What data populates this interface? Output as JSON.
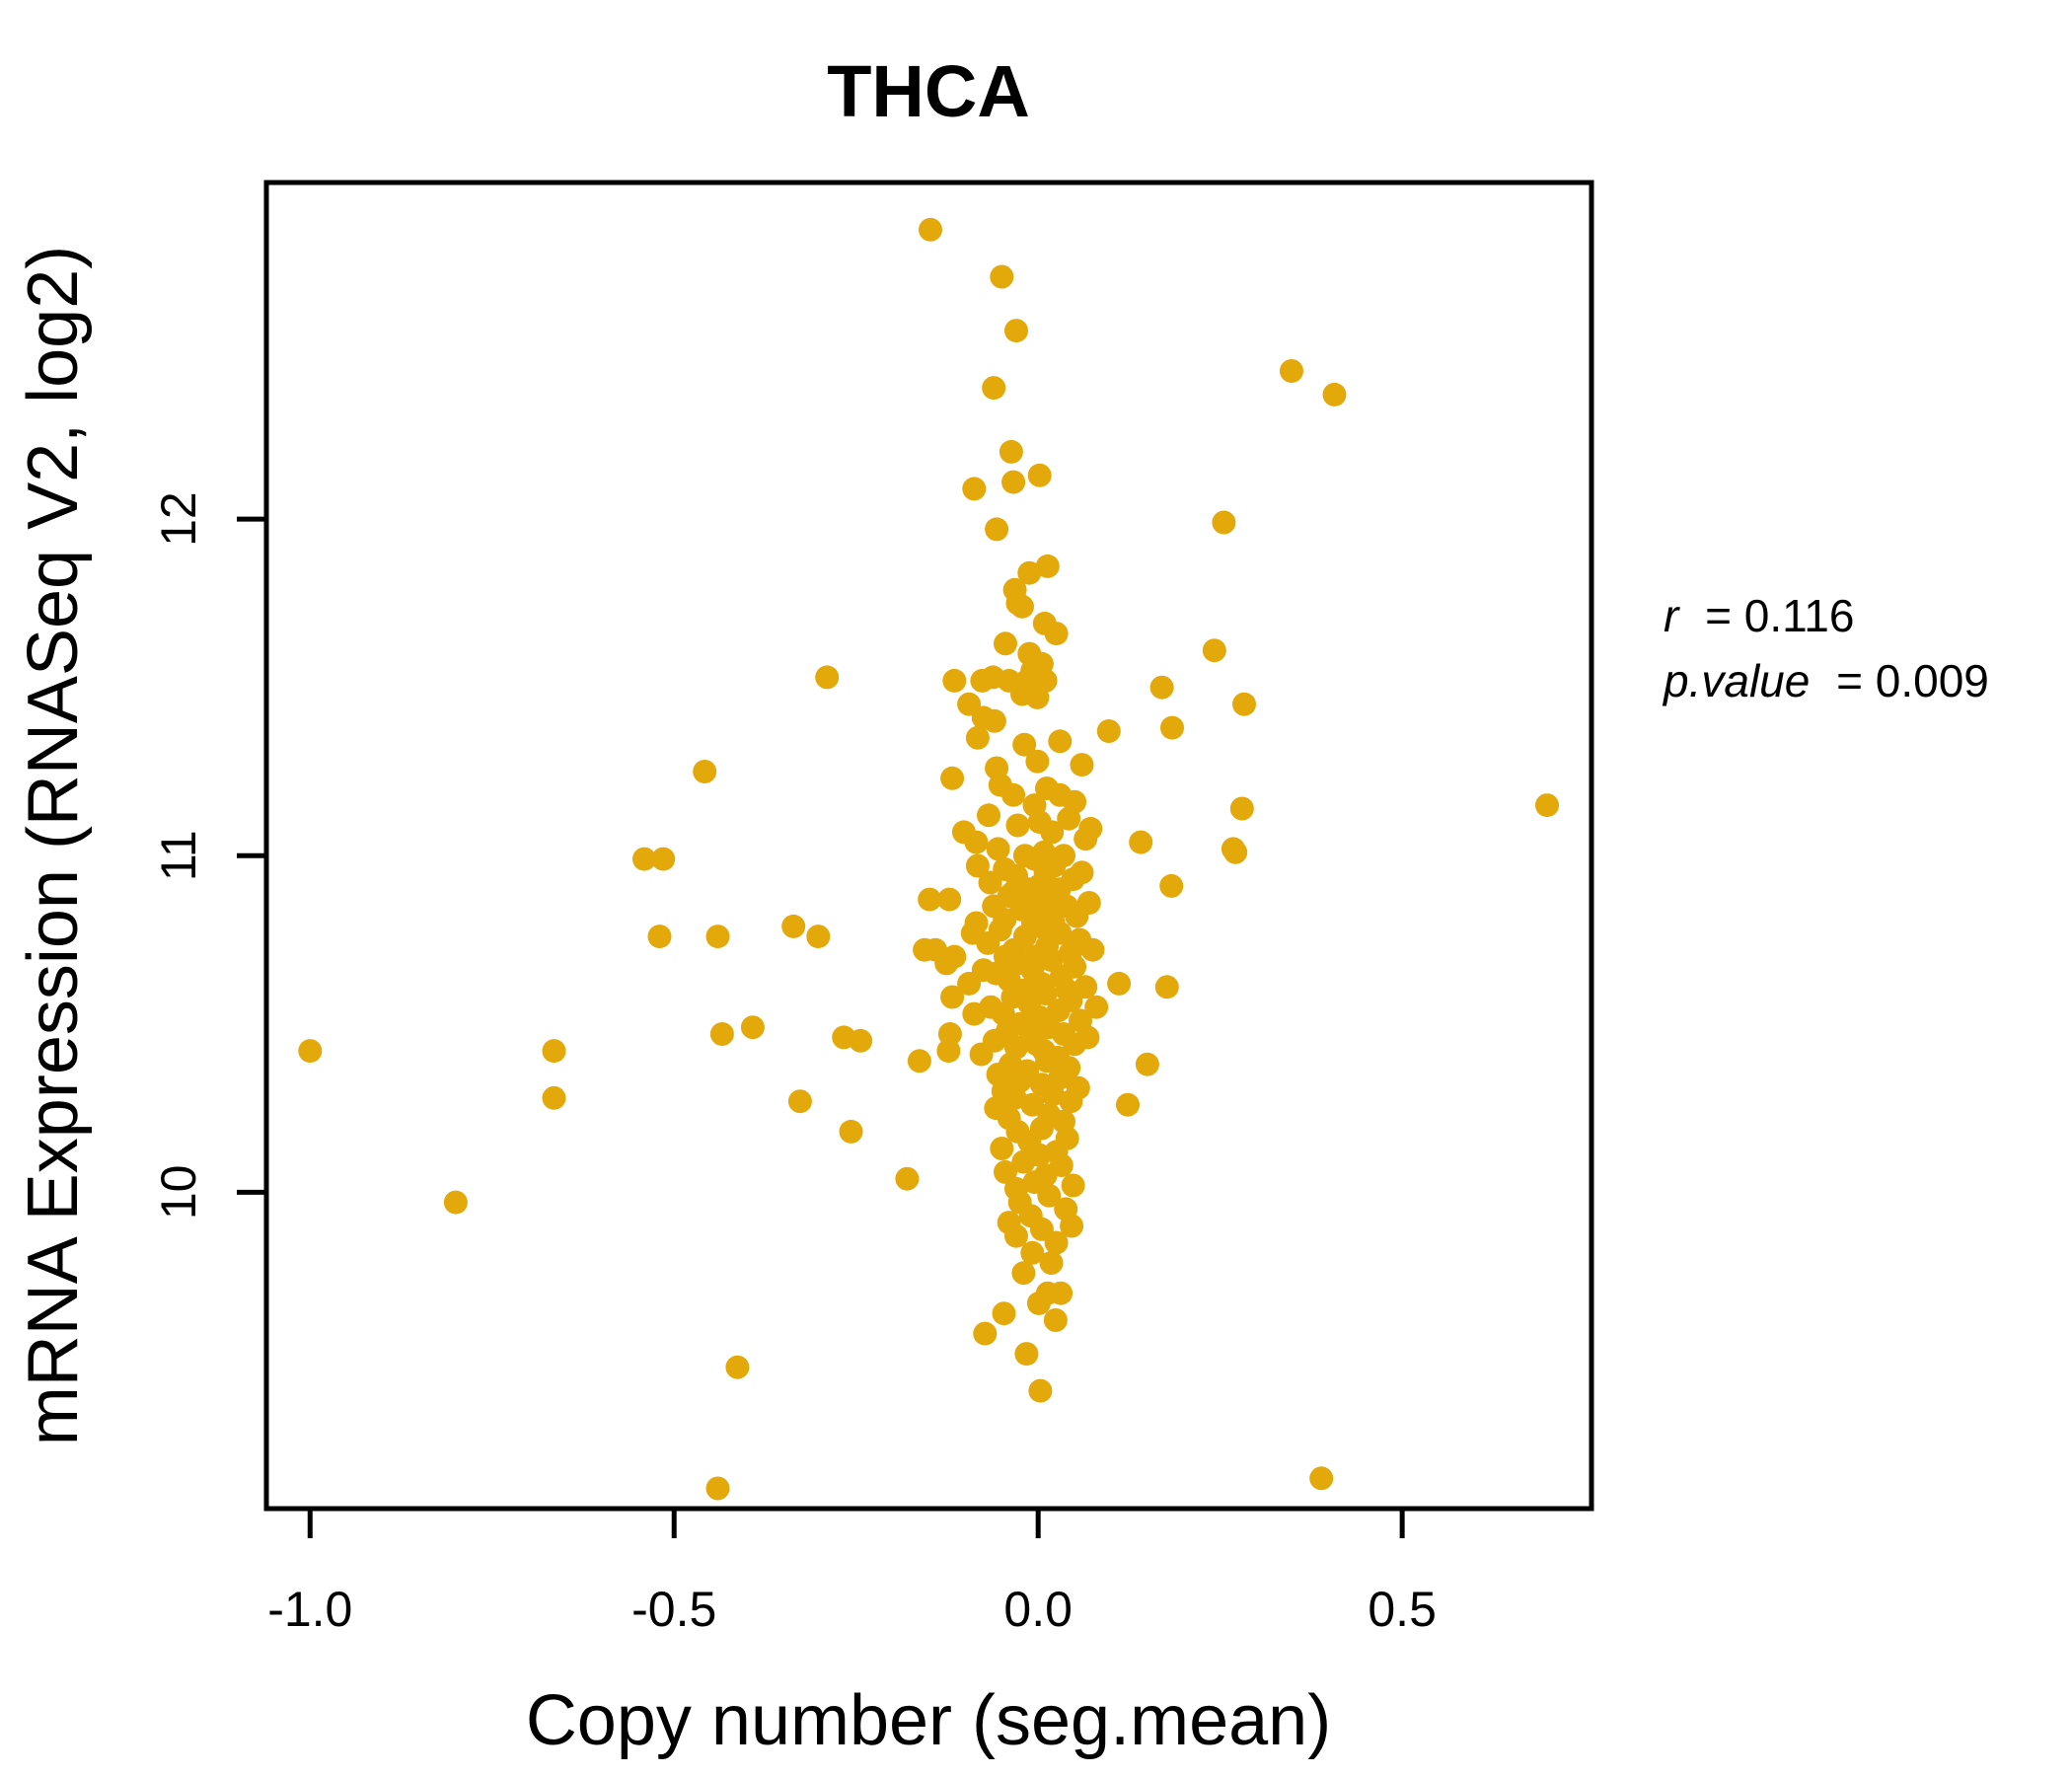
{
  "title": {
    "text": "THCA",
    "color": "#E3A80A"
  },
  "annotation": {
    "r_label": "r",
    "r_eq": "= 0.116",
    "p_label": "p.value",
    "p_eq": "= 0.009"
  },
  "chart_data": {
    "type": "scatter",
    "title": "THCA",
    "xlabel": "Copy number (seg.mean)",
    "ylabel": "mRNA Expression (RNASeq V2, log2)",
    "xlim": [
      -1.06,
      0.76
    ],
    "ylim": [
      9.06,
      13.0
    ],
    "x_ticks": [
      -1.0,
      -0.5,
      0.0,
      0.5
    ],
    "x_tick_labels": [
      "-1.0",
      "-0.5",
      "0.0",
      "0.5"
    ],
    "y_ticks": [
      10,
      11,
      12
    ],
    "y_tick_labels": [
      "10",
      "11",
      "12"
    ],
    "grid": false,
    "legend": "none",
    "point_color": "#E3A80A",
    "point_radius_px": 12,
    "correlation": {
      "r": 0.116,
      "p_value": 0.009
    },
    "points": [
      [
        -1.0,
        10.42
      ],
      [
        -0.8,
        9.97
      ],
      [
        -0.665,
        10.42
      ],
      [
        -0.665,
        10.28
      ],
      [
        -0.541,
        10.99
      ],
      [
        -0.515,
        10.99
      ],
      [
        -0.52,
        10.76
      ],
      [
        -0.458,
        11.25
      ],
      [
        -0.44,
        10.76
      ],
      [
        -0.434,
        10.47
      ],
      [
        -0.413,
        9.48
      ],
      [
        -0.44,
        9.12
      ],
      [
        -0.392,
        10.49
      ],
      [
        -0.336,
        10.79
      ],
      [
        -0.327,
        10.27
      ],
      [
        -0.302,
        10.76
      ],
      [
        -0.29,
        11.53
      ],
      [
        -0.267,
        10.46
      ],
      [
        -0.257,
        10.18
      ],
      [
        -0.244,
        10.45
      ],
      [
        -0.18,
        10.04
      ],
      [
        -0.163,
        10.39
      ],
      [
        -0.148,
        12.86
      ],
      [
        -0.05,
        12.72
      ],
      [
        -0.03,
        12.56
      ],
      [
        -0.061,
        12.39
      ],
      [
        0.348,
        12.44
      ],
      [
        0.407,
        12.37
      ],
      [
        -0.037,
        12.2
      ],
      [
        0.002,
        12.13
      ],
      [
        -0.034,
        12.11
      ],
      [
        -0.088,
        12.09
      ],
      [
        -0.057,
        11.97
      ],
      [
        0.255,
        11.99
      ],
      [
        0.013,
        11.86
      ],
      [
        -0.012,
        11.84
      ],
      [
        -0.032,
        11.79
      ],
      [
        -0.028,
        11.75
      ],
      [
        -0.022,
        11.74
      ],
      [
        0.009,
        11.69
      ],
      [
        0.025,
        11.66
      ],
      [
        -0.045,
        11.63
      ],
      [
        -0.012,
        11.6
      ],
      [
        0.242,
        11.61
      ],
      [
        0.005,
        11.57
      ],
      [
        -0.008,
        11.55
      ],
      [
        -0.115,
        11.52
      ],
      [
        -0.077,
        11.52
      ],
      [
        -0.062,
        11.53
      ],
      [
        -0.04,
        11.52
      ],
      [
        -0.015,
        11.52
      ],
      [
        0.01,
        11.52
      ],
      [
        0.17,
        11.5
      ],
      [
        -0.022,
        11.48
      ],
      [
        -0.001,
        11.47
      ],
      [
        -0.095,
        11.45
      ],
      [
        0.283,
        11.45
      ],
      [
        -0.075,
        11.41
      ],
      [
        -0.06,
        11.4
      ],
      [
        0.184,
        11.38
      ],
      [
        0.097,
        11.37
      ],
      [
        -0.083,
        11.35
      ],
      [
        0.03,
        11.34
      ],
      [
        -0.019,
        11.33
      ],
      [
        -0.001,
        11.28
      ],
      [
        -0.057,
        11.26
      ],
      [
        0.06,
        11.27
      ],
      [
        -0.118,
        11.23
      ],
      [
        -0.034,
        11.18
      ],
      [
        0.03,
        11.18
      ],
      [
        -0.052,
        11.21
      ],
      [
        0.012,
        11.2
      ],
      [
        0.28,
        11.14
      ],
      [
        0.699,
        11.15
      ],
      [
        -0.005,
        11.15
      ],
      [
        0.05,
        11.16
      ],
      [
        -0.068,
        11.12
      ],
      [
        0.042,
        11.11
      ],
      [
        0.002,
        11.1
      ],
      [
        -0.028,
        11.09
      ],
      [
        0.072,
        11.08
      ],
      [
        -0.102,
        11.07
      ],
      [
        0.019,
        11.07
      ],
      [
        0.065,
        11.05
      ],
      [
        0.141,
        11.04
      ],
      [
        -0.085,
        11.04
      ],
      [
        -0.055,
        11.02
      ],
      [
        0.271,
        11.01
      ],
      [
        0.268,
        11.02
      ],
      [
        0.008,
        11.01
      ],
      [
        -0.018,
        11.0
      ],
      [
        0.035,
        11.0
      ],
      [
        -0.005,
        10.99
      ],
      [
        0.022,
        10.97
      ],
      [
        -0.083,
        10.97
      ],
      [
        -0.046,
        10.96
      ],
      [
        0.01,
        10.95
      ],
      [
        0.06,
        10.95
      ],
      [
        -0.03,
        10.94
      ],
      [
        0.048,
        10.93
      ],
      [
        -0.066,
        10.92
      ],
      [
        0.001,
        10.91
      ],
      [
        0.183,
        10.91
      ],
      [
        0.029,
        10.9
      ],
      [
        -0.014,
        10.9
      ],
      [
        -0.035,
        10.89
      ],
      [
        -0.04,
        10.88
      ],
      [
        -0.149,
        10.87
      ],
      [
        -0.122,
        10.87
      ],
      [
        0.016,
        10.87
      ],
      [
        0.07,
        10.86
      ],
      [
        -0.002,
        10.86
      ],
      [
        0.039,
        10.85
      ],
      [
        -0.061,
        10.85
      ],
      [
        -0.023,
        10.84
      ],
      [
        0.009,
        10.83
      ],
      [
        0.053,
        10.82
      ],
      [
        -0.046,
        10.81
      ],
      [
        0.021,
        10.8
      ],
      [
        -0.007,
        10.8
      ],
      [
        -0.085,
        10.8
      ],
      [
        0.002,
        10.79
      ],
      [
        -0.052,
        10.78
      ],
      [
        0.03,
        10.77
      ],
      [
        -0.09,
        10.77
      ],
      [
        -0.018,
        10.76
      ],
      [
        0.057,
        10.75
      ],
      [
        -0.069,
        10.74
      ],
      [
        0.012,
        10.73
      ],
      [
        -0.141,
        10.72
      ],
      [
        -0.156,
        10.72
      ],
      [
        0.075,
        10.72
      ],
      [
        -0.033,
        10.72
      ],
      [
        0.044,
        10.71
      ],
      [
        -0.115,
        10.7
      ],
      [
        -0.005,
        10.7
      ],
      [
        -0.045,
        10.7
      ],
      [
        0.018,
        10.69
      ],
      [
        -0.126,
        10.68
      ],
      [
        -0.028,
        10.68
      ],
      [
        0.05,
        10.67
      ],
      [
        -0.008,
        10.66
      ],
      [
        -0.075,
        10.66
      ],
      [
        -0.058,
        10.65
      ],
      [
        0.032,
        10.64
      ],
      [
        -0.04,
        10.63
      ],
      [
        0.005,
        10.62
      ],
      [
        -0.095,
        10.62
      ],
      [
        0.111,
        10.62
      ],
      [
        0.177,
        10.61
      ],
      [
        0.065,
        10.61
      ],
      [
        -0.02,
        10.6
      ],
      [
        0.04,
        10.6
      ],
      [
        0.01,
        10.59
      ],
      [
        -0.118,
        10.58
      ],
      [
        -0.035,
        10.58
      ],
      [
        0.045,
        10.57
      ],
      [
        -0.012,
        10.56
      ],
      [
        -0.065,
        10.55
      ],
      [
        0.08,
        10.55
      ],
      [
        0.028,
        10.54
      ],
      [
        -0.088,
        10.53
      ],
      [
        -0.048,
        10.53
      ],
      [
        0.002,
        10.52
      ],
      [
        0.058,
        10.51
      ],
      [
        -0.025,
        10.5
      ],
      [
        0.015,
        10.49
      ],
      [
        -0.042,
        10.48
      ],
      [
        -0.121,
        10.47
      ],
      [
        0.035,
        10.47
      ],
      [
        0.068,
        10.46
      ],
      [
        -0.01,
        10.46
      ],
      [
        -0.06,
        10.45
      ],
      [
        0.05,
        10.44
      ],
      [
        -0.002,
        10.44
      ],
      [
        -0.03,
        10.43
      ],
      [
        -0.123,
        10.42
      ],
      [
        0.008,
        10.42
      ],
      [
        -0.078,
        10.41
      ],
      [
        0.027,
        10.4
      ],
      [
        0.012,
        10.39
      ],
      [
        -0.038,
        10.38
      ],
      [
        0.15,
        10.38
      ],
      [
        0.042,
        10.37
      ],
      [
        -0.015,
        10.36
      ],
      [
        -0.055,
        10.35
      ],
      [
        0.03,
        10.34
      ],
      [
        -0.025,
        10.33
      ],
      [
        0.005,
        10.32
      ],
      [
        0.055,
        10.31
      ],
      [
        -0.048,
        10.3
      ],
      [
        0.02,
        10.29
      ],
      [
        -0.032,
        10.28
      ],
      [
        0.045,
        10.27
      ],
      [
        -0.008,
        10.26
      ],
      [
        0.123,
        10.26
      ],
      [
        -0.058,
        10.25
      ],
      [
        0.015,
        10.23
      ],
      [
        -0.04,
        10.22
      ],
      [
        0.035,
        10.21
      ],
      [
        0.005,
        10.19
      ],
      [
        -0.028,
        10.18
      ],
      [
        0.04,
        10.16
      ],
      [
        -0.012,
        10.15
      ],
      [
        -0.05,
        10.13
      ],
      [
        0.025,
        10.12
      ],
      [
        0.002,
        10.11
      ],
      [
        -0.02,
        10.09
      ],
      [
        0.032,
        10.08
      ],
      [
        -0.045,
        10.06
      ],
      [
        0.01,
        10.05
      ],
      [
        -0.005,
        10.03
      ],
      [
        0.048,
        10.02
      ],
      [
        -0.03,
        10.01
      ],
      [
        0.015,
        9.99
      ],
      [
        -0.025,
        9.97
      ],
      [
        0.038,
        9.95
      ],
      [
        -0.01,
        9.93
      ],
      [
        -0.04,
        9.91
      ],
      [
        0.046,
        9.9
      ],
      [
        0.005,
        9.89
      ],
      [
        -0.03,
        9.87
      ],
      [
        0.025,
        9.85
      ],
      [
        -0.008,
        9.82
      ],
      [
        0.018,
        9.79
      ],
      [
        -0.02,
        9.76
      ],
      [
        0.031,
        9.7
      ],
      [
        0.013,
        9.7
      ],
      [
        0.001,
        9.67
      ],
      [
        -0.047,
        9.64
      ],
      [
        0.024,
        9.62
      ],
      [
        -0.073,
        9.58
      ],
      [
        -0.016,
        9.52
      ],
      [
        0.003,
        9.41
      ],
      [
        0.389,
        9.15
      ]
    ]
  }
}
